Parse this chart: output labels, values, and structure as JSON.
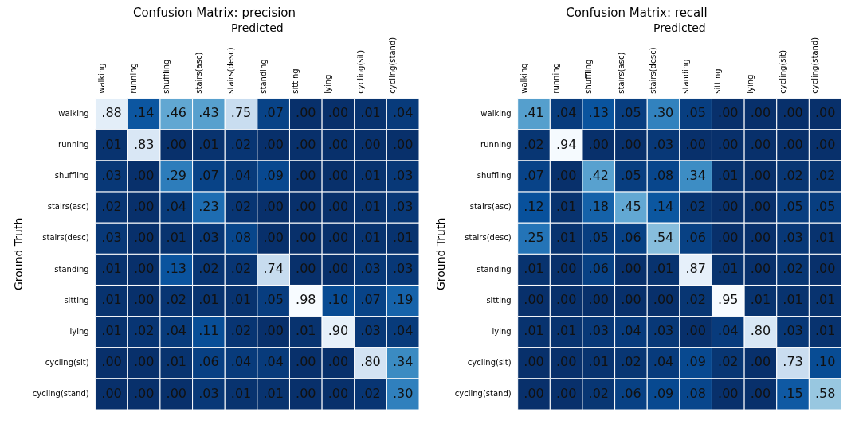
{
  "chart_data": [
    {
      "type": "heatmap",
      "title": "Confusion Matrix: precision",
      "xlabel": "Predicted",
      "ylabel": "Ground Truth",
      "categories": [
        "walking",
        "running",
        "shuffling",
        "stairs(asc)",
        "stairs(desc)",
        "standing",
        "sitting",
        "lying",
        "cycling(sit)",
        "cycling(stand)"
      ],
      "y_categories": [
        "walking",
        "running",
        "shuffling",
        "stairs(asc)",
        "stairs(desc)",
        "standing",
        "sitting",
        "lying",
        "cycling(sit)",
        "cycling(stand)"
      ],
      "cells": [
        [
          0.88,
          0.14,
          0.46,
          0.43,
          0.75,
          0.07,
          0.0,
          0.0,
          0.01,
          0.04
        ],
        [
          0.01,
          0.83,
          0.0,
          0.01,
          0.02,
          0.0,
          0.0,
          0.0,
          0.0,
          0.0
        ],
        [
          0.03,
          0.0,
          0.29,
          0.07,
          0.04,
          0.09,
          0.0,
          0.0,
          0.01,
          0.03
        ],
        [
          0.02,
          0.0,
          0.04,
          0.23,
          0.02,
          0.0,
          0.0,
          0.0,
          0.01,
          0.03
        ],
        [
          0.03,
          0.0,
          0.01,
          0.03,
          0.08,
          0.0,
          0.0,
          0.0,
          0.01,
          0.01
        ],
        [
          0.01,
          0.0,
          0.13,
          0.02,
          0.02,
          0.74,
          0.0,
          0.0,
          0.03,
          0.03
        ],
        [
          0.01,
          0.0,
          0.02,
          0.01,
          0.01,
          0.05,
          0.98,
          0.1,
          0.07,
          0.19
        ],
        [
          0.01,
          0.02,
          0.04,
          0.11,
          0.02,
          0.0,
          0.01,
          0.9,
          0.03,
          0.04
        ],
        [
          0.0,
          0.0,
          0.01,
          0.06,
          0.04,
          0.04,
          0.0,
          0.0,
          0.8,
          0.34
        ],
        [
          0.0,
          0.0,
          0.0,
          0.03,
          0.01,
          0.01,
          0.0,
          0.0,
          0.02,
          0.3
        ]
      ],
      "cell_labels": [
        [
          ".88",
          ".14",
          ".46",
          ".43",
          ".75",
          ".07",
          ".00",
          ".00",
          ".01",
          ".04"
        ],
        [
          ".01",
          ".83",
          ".00",
          ".01",
          ".02",
          ".00",
          ".00",
          ".00",
          ".00",
          ".00"
        ],
        [
          ".03",
          ".00",
          ".29",
          ".07",
          ".04",
          ".09",
          ".00",
          ".00",
          ".01",
          ".03"
        ],
        [
          ".02",
          ".00",
          ".04",
          ".23",
          ".02",
          ".00",
          ".00",
          ".00",
          ".01",
          ".03"
        ],
        [
          ".03",
          ".00",
          ".01",
          ".03",
          ".08",
          ".00",
          ".00",
          ".00",
          ".01",
          ".01"
        ],
        [
          ".01",
          ".00",
          ".13",
          ".02",
          ".02",
          ".74",
          ".00",
          ".00",
          ".03",
          ".03"
        ],
        [
          ".01",
          ".00",
          ".02",
          ".01",
          ".01",
          ".05",
          ".98",
          ".10",
          ".07",
          ".19"
        ],
        [
          ".01",
          ".02",
          ".04",
          ".11",
          ".02",
          ".00",
          ".01",
          ".90",
          ".03",
          ".04"
        ],
        [
          ".00",
          ".00",
          ".01",
          ".06",
          ".04",
          ".04",
          ".00",
          ".00",
          ".80",
          ".34"
        ],
        [
          ".00",
          ".00",
          ".00",
          ".03",
          ".01",
          ".01",
          ".00",
          ".00",
          ".02",
          ".30"
        ]
      ]
    },
    {
      "type": "heatmap",
      "title": "Confusion Matrix: recall",
      "xlabel": "Predicted",
      "ylabel": "Ground Truth",
      "categories": [
        "walking",
        "running",
        "shuffling",
        "stairs(asc)",
        "stairs(desc)",
        "standing",
        "sitting",
        "lying",
        "cycling(sit)",
        "cycling(stand)"
      ],
      "y_categories": [
        "walking",
        "running",
        "shuffling",
        "stairs(asc)",
        "stairs(desc)",
        "standing",
        "sitting",
        "lying",
        "cycling(sit)",
        "cycling(stand)"
      ],
      "cells": [
        [
          0.41,
          0.04,
          0.13,
          0.05,
          0.3,
          0.05,
          0.0,
          0.0,
          0.0,
          0.0
        ],
        [
          0.02,
          0.94,
          0.0,
          0.0,
          0.03,
          0.0,
          0.0,
          0.0,
          0.0,
          0.0
        ],
        [
          0.07,
          0.0,
          0.42,
          0.05,
          0.08,
          0.34,
          0.01,
          0.0,
          0.02,
          0.02
        ],
        [
          0.12,
          0.01,
          0.18,
          0.45,
          0.14,
          0.02,
          0.0,
          0.0,
          0.05,
          0.05
        ],
        [
          0.25,
          0.01,
          0.05,
          0.06,
          0.54,
          0.06,
          0.0,
          0.0,
          0.03,
          0.01
        ],
        [
          0.01,
          0.0,
          0.06,
          0.0,
          0.01,
          0.87,
          0.01,
          0.0,
          0.02,
          0.0
        ],
        [
          0.0,
          0.0,
          0.0,
          0.0,
          0.0,
          0.02,
          0.95,
          0.01,
          0.01,
          0.01
        ],
        [
          0.01,
          0.01,
          0.03,
          0.04,
          0.03,
          0.0,
          0.04,
          0.8,
          0.03,
          0.01
        ],
        [
          0.0,
          0.0,
          0.01,
          0.02,
          0.04,
          0.09,
          0.02,
          0.0,
          0.73,
          0.1
        ],
        [
          0.0,
          0.0,
          0.02,
          0.06,
          0.09,
          0.08,
          0.0,
          0.0,
          0.15,
          0.58
        ]
      ],
      "cell_labels": [
        [
          ".41",
          ".04",
          ".13",
          ".05",
          ".30",
          ".05",
          ".00",
          ".00",
          ".00",
          ".00"
        ],
        [
          ".02",
          ".94",
          ".00",
          ".00",
          ".03",
          ".00",
          ".00",
          ".00",
          ".00",
          ".00"
        ],
        [
          ".07",
          ".00",
          ".42",
          ".05",
          ".08",
          ".34",
          ".01",
          ".00",
          ".02",
          ".02"
        ],
        [
          ".12",
          ".01",
          ".18",
          ".45",
          ".14",
          ".02",
          ".00",
          ".00",
          ".05",
          ".05"
        ],
        [
          ".25",
          ".01",
          ".05",
          ".06",
          ".54",
          ".06",
          ".00",
          ".00",
          ".03",
          ".01"
        ],
        [
          ".01",
          ".00",
          ".06",
          ".00",
          ".01",
          ".87",
          ".01",
          ".00",
          ".02",
          ".00"
        ],
        [
          ".00",
          ".00",
          ".00",
          ".00",
          ".00",
          ".02",
          ".95",
          ".01",
          ".01",
          ".01"
        ],
        [
          ".01",
          ".01",
          ".03",
          ".04",
          ".03",
          ".00",
          ".04",
          ".80",
          ".03",
          ".01"
        ],
        [
          ".00",
          ".00",
          ".01",
          ".02",
          ".04",
          ".09",
          ".02",
          ".00",
          ".73",
          ".10"
        ],
        [
          ".00",
          ".00",
          ".02",
          ".06",
          ".09",
          ".08",
          ".00",
          ".00",
          ".15",
          ".58"
        ]
      ]
    }
  ]
}
